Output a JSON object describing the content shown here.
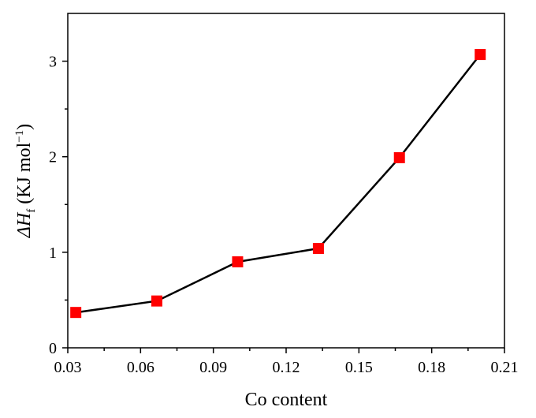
{
  "chart_data": {
    "type": "line",
    "title": "",
    "xlabel": "Co content",
    "ylabel": {
      "prefix": "ΔH",
      "subscript": "f",
      "units_open": " (KJ mol",
      "units_sup": "−1",
      "units_close": ")"
    },
    "xlim": [
      0.03,
      0.21
    ],
    "ylim": [
      0,
      3.5
    ],
    "xticks": [
      0.03,
      0.06,
      0.09,
      0.12,
      0.15,
      0.18,
      0.21
    ],
    "xtick_labels": [
      "0.03",
      "0.06",
      "0.09",
      "0.12",
      "0.15",
      "0.18",
      "0.21"
    ],
    "yticks": [
      0,
      1,
      2,
      3
    ],
    "ytick_labels": [
      "0",
      "1",
      "2",
      "3"
    ],
    "grid": false,
    "legend": "none",
    "series": [
      {
        "x": [
          0.0333,
          0.0667,
          0.1,
          0.1333,
          0.1667,
          0.2
        ],
        "y": [
          0.37,
          0.49,
          0.9,
          1.04,
          1.99,
          3.07
        ],
        "marker": "square",
        "marker_color": "#ff0000",
        "line_color": "#000000"
      }
    ]
  }
}
